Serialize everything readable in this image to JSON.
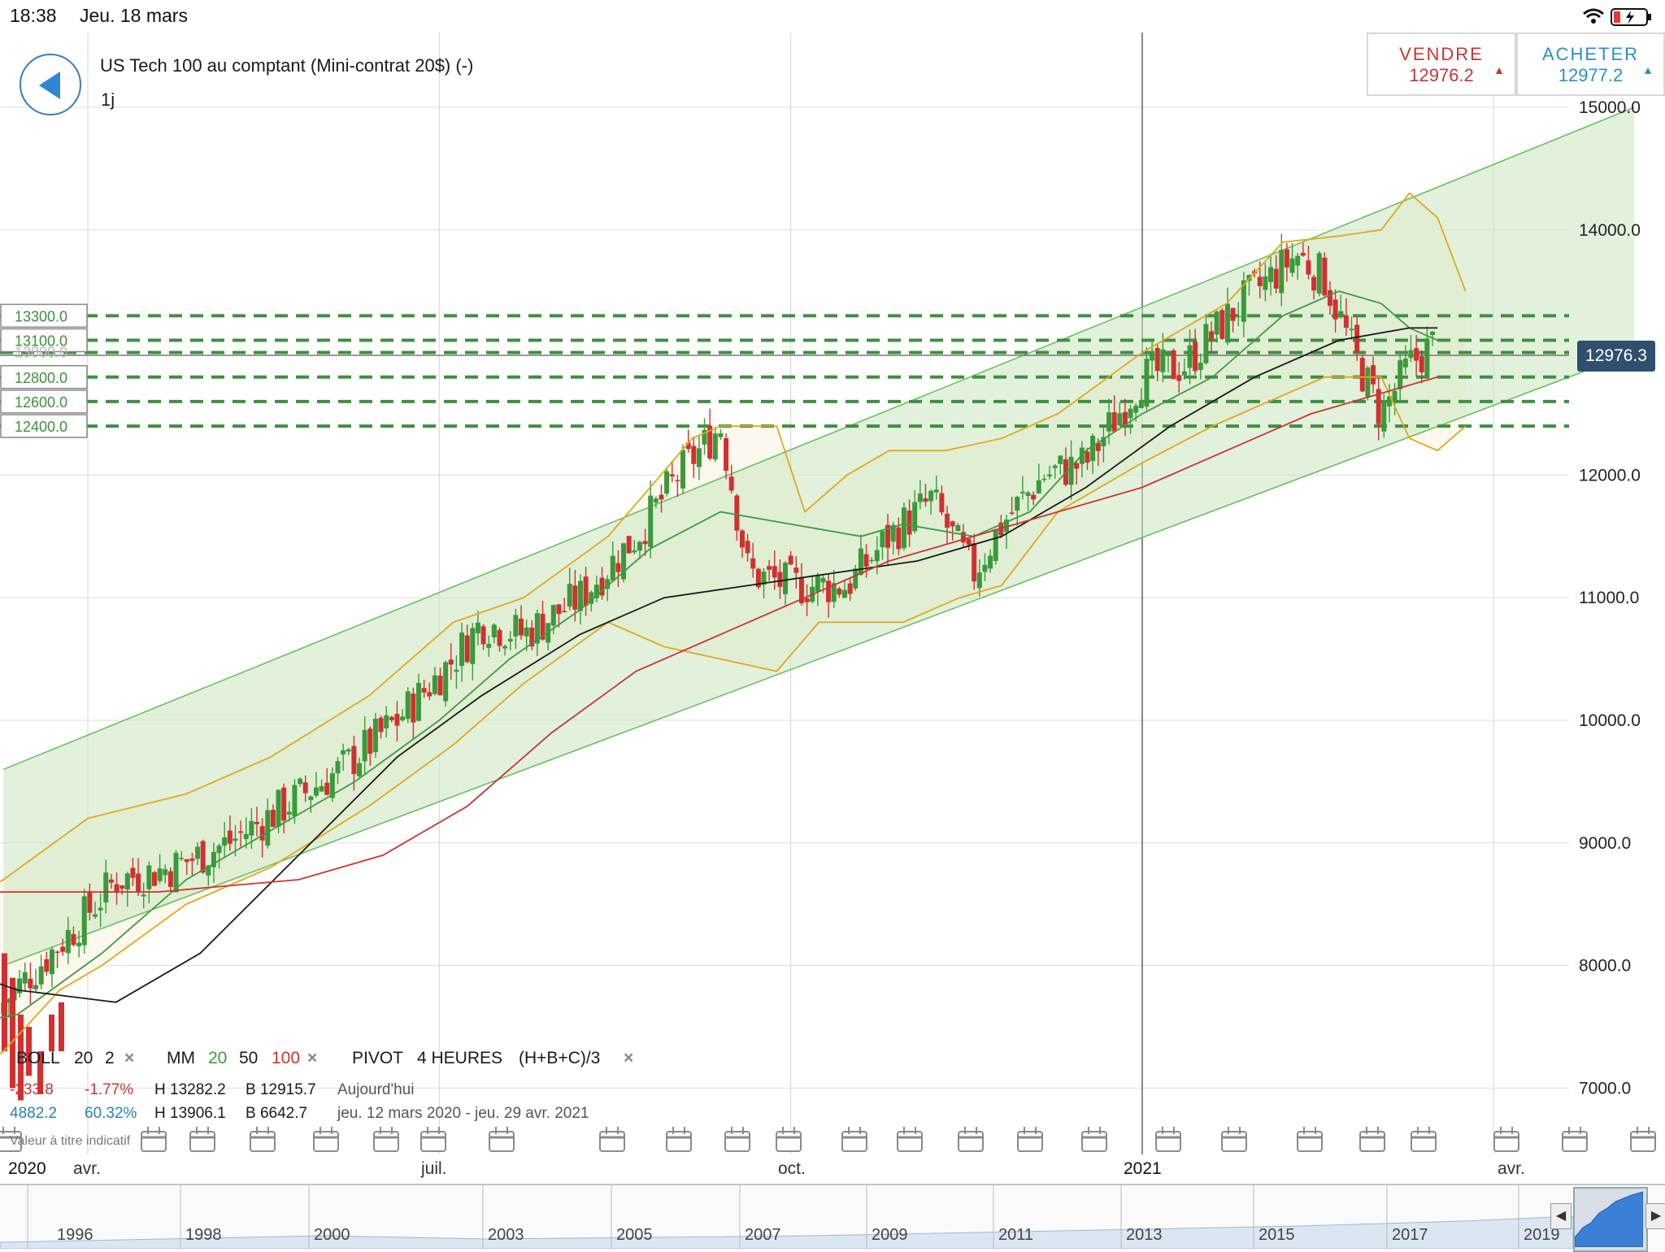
{
  "status_bar": {
    "time": "18:38",
    "date": "Jeu. 18 mars"
  },
  "instrument": {
    "title": "US Tech 100 au comptant (Mini-contrat 20$) (-)",
    "timeframe": "1j"
  },
  "trade": {
    "sell_label": "VENDRE",
    "sell_price": "12976.2",
    "buy_label": "ACHETER",
    "buy_price": "12977.2",
    "sell_color": "#cc3333",
    "buy_color": "#2c8fc4"
  },
  "current_price": "12976.3",
  "indicators": {
    "boll": {
      "name": "BOLL",
      "p1": "20",
      "p2": "2"
    },
    "ma": {
      "name": "MM",
      "p1": "20",
      "p2": "50",
      "p3": "100"
    },
    "pivot": {
      "name": "PIVOT",
      "period": "4 HEURES",
      "formula": "(H+B+C)/3"
    },
    "close_symbol": "×"
  },
  "stats": {
    "row1": {
      "change": "-233.8",
      "pct": "-1.77%",
      "high": "H 13282.2",
      "low": "B 12915.7",
      "period": "Aujourd'hui"
    },
    "row2": {
      "change": "4882.2",
      "pct": "60.32%",
      "high": "H 13906.1",
      "low": "B 6642.7",
      "period": "jeu. 12 mars 2020 - jeu. 29 avr. 2021"
    }
  },
  "disclaimer": "Valeur à titre indicatif",
  "x_axis": {
    "months": [
      "avr.",
      "juil.",
      "oct.",
      "avr."
    ],
    "years": [
      "2020",
      "2021"
    ]
  },
  "navigator": {
    "years": [
      "1996",
      "1998",
      "2000",
      "2003",
      "2005",
      "2007",
      "2009",
      "2011",
      "2013",
      "2015",
      "2017",
      "2019"
    ],
    "left_arrow": "◀",
    "right_arrow": "▶"
  },
  "chart_data": {
    "type": "candlestick",
    "y_ticks": [
      15000,
      14000,
      12000,
      11000,
      10000,
      9000,
      8000,
      7000
    ],
    "ylim": [
      6600,
      15250
    ],
    "x_tick_labels": [
      "avr.",
      "juil.",
      "oct.",
      "2021",
      "avr."
    ],
    "pivot_levels": [
      13300,
      13100,
      13000,
      12800,
      12600,
      12400
    ],
    "pivot_labels": [
      "13300.0",
      "13100.0",
      "13000.0",
      "12800.0",
      "12600.0",
      "12400.0"
    ],
    "current_price": 12976.3,
    "series": [
      {
        "name": "BOLL 20 2",
        "color": "#e0a81c"
      },
      {
        "name": "MM 20",
        "color": "#3f9a3f"
      },
      {
        "name": "MM 50",
        "color": "#1a1a1a"
      },
      {
        "name": "MM 100",
        "color": "#cc3333"
      }
    ],
    "close_path": [
      [
        2020.19,
        7700
      ],
      [
        2020.24,
        8300
      ],
      [
        2020.27,
        8700
      ],
      [
        2020.31,
        8800
      ],
      [
        2020.35,
        9000
      ],
      [
        2020.39,
        9300
      ],
      [
        2020.43,
        9600
      ],
      [
        2020.47,
        10000
      ],
      [
        2020.51,
        10500
      ],
      [
        2020.53,
        10800
      ],
      [
        2020.56,
        10700
      ],
      [
        2020.6,
        11000
      ],
      [
        2020.64,
        11500
      ],
      [
        2020.67,
        12000
      ],
      [
        2020.7,
        12400
      ],
      [
        2020.72,
        11200
      ],
      [
        2020.75,
        11100
      ],
      [
        2020.79,
        11100
      ],
      [
        2020.82,
        11500
      ],
      [
        2020.85,
        11800
      ],
      [
        2020.88,
        11200
      ],
      [
        2020.9,
        11600
      ],
      [
        2020.93,
        12000
      ],
      [
        2020.96,
        12100
      ],
      [
        2021.0,
        12800
      ],
      [
        2021.03,
        12900
      ],
      [
        2021.07,
        13400
      ],
      [
        2021.11,
        13800
      ],
      [
        2021.13,
        13600
      ],
      [
        2021.15,
        13000
      ],
      [
        2021.17,
        12500
      ],
      [
        2021.19,
        12900
      ],
      [
        2021.21,
        13100
      ],
      [
        2021.21,
        12976
      ]
    ],
    "channel": {
      "upper": [
        [
          2020.19,
          9600
        ],
        [
          2021.35,
          15000
        ]
      ],
      "lower": [
        [
          2020.19,
          8000
        ],
        [
          2021.35,
          13000
        ]
      ]
    }
  }
}
